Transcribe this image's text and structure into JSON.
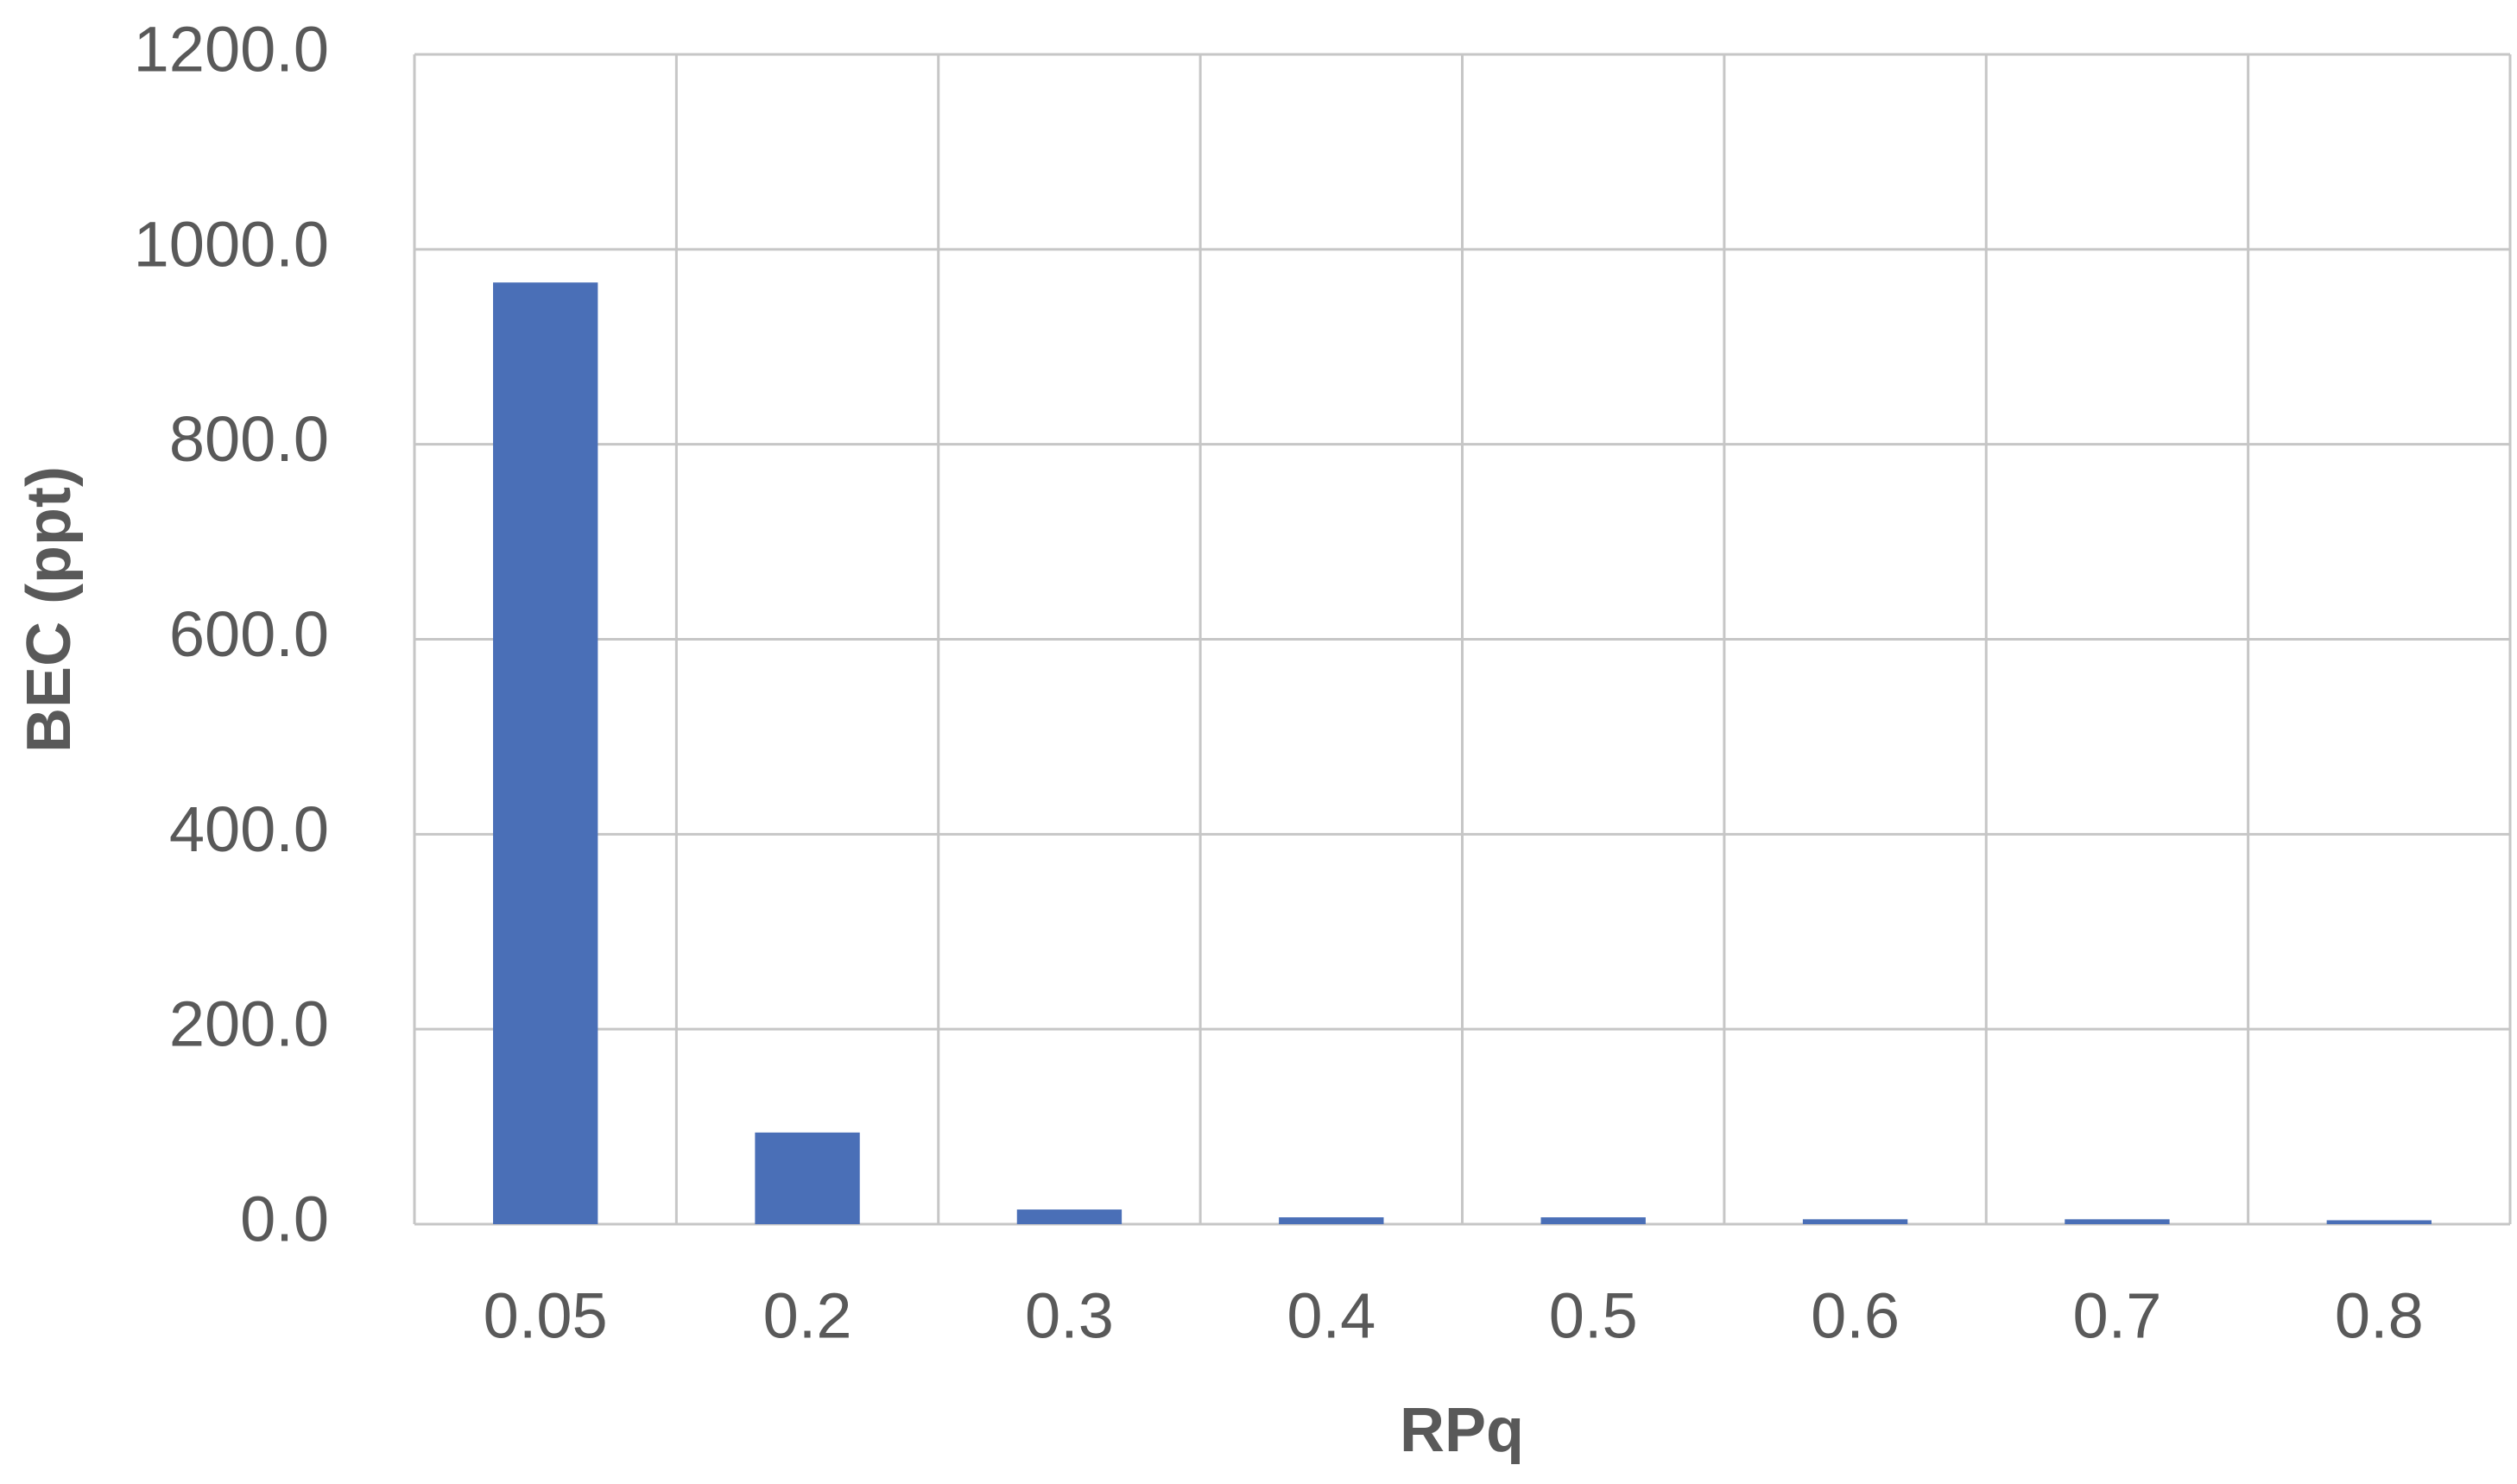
{
  "chart_data": {
    "type": "bar",
    "x_label": "RPq",
    "y_label": "BEC (ppt)",
    "categories": [
      "0.05",
      "0.2",
      "0.3",
      "0.4",
      "0.5",
      "0.6",
      "0.7",
      "0.8"
    ],
    "values": [
      966,
      94,
      15,
      7,
      7,
      5,
      5,
      4
    ],
    "color": "#4a6fb7",
    "ylim": [
      0,
      1200
    ],
    "yticks": [
      {
        "value": 0,
        "label": "0.0"
      },
      {
        "value": 200,
        "label": "200.0"
      },
      {
        "value": 400,
        "label": "400.0"
      },
      {
        "value": 600,
        "label": "600.0"
      },
      {
        "value": 800,
        "label": "800.0"
      },
      {
        "value": 1000,
        "label": "1000.0"
      },
      {
        "value": 1200,
        "label": "1200.0"
      }
    ],
    "grid": true
  }
}
